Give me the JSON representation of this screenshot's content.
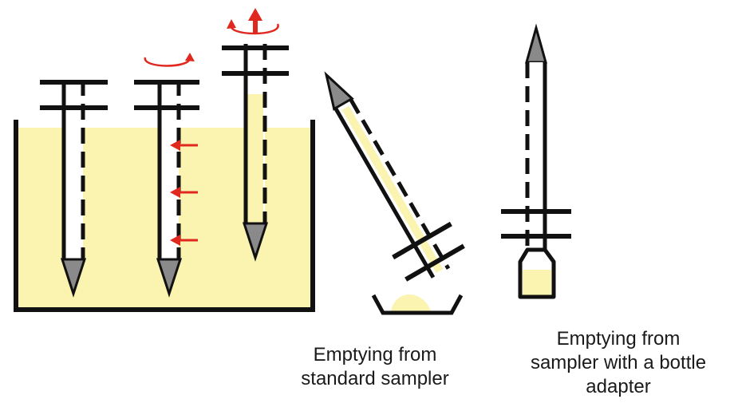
{
  "captions": {
    "standard": [
      "Emptying from",
      "standard sampler"
    ],
    "adapter": [
      "Emptying from",
      "sampler with a bottle",
      "adapter"
    ]
  },
  "colors": {
    "liquid": "#fbf3b0",
    "outline": "#111111",
    "arrow": "#e0281f",
    "tip": "#8a8a8a",
    "tube_fill": "#ffffff"
  }
}
